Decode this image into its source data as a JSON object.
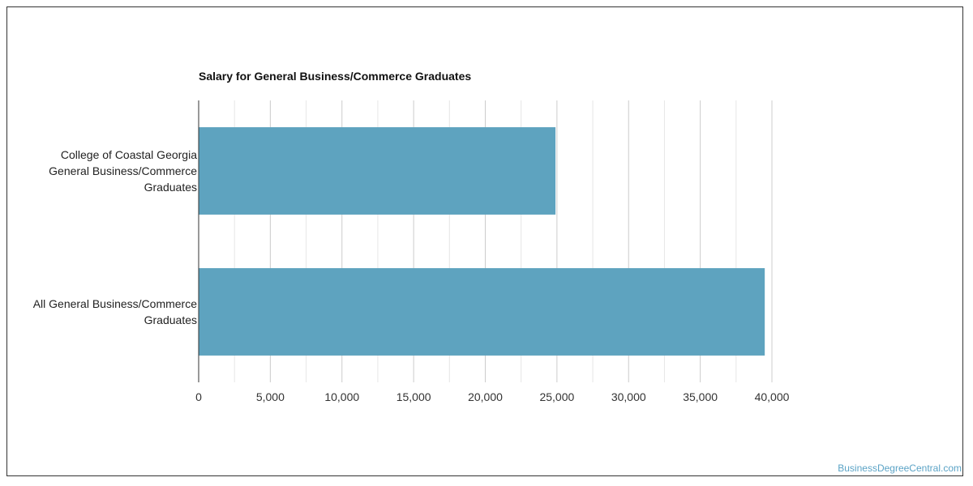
{
  "chart_data": {
    "type": "bar",
    "orientation": "horizontal",
    "title": "Salary for General Business/Commerce Graduates",
    "categories": [
      [
        "College of Coastal Georgia",
        "General Business/Commerce",
        "Graduates"
      ],
      [
        "All General Business/Commerce",
        "Graduates"
      ]
    ],
    "values": [
      24900,
      39500
    ],
    "xlim": [
      0,
      40000
    ],
    "xticks": [
      "0",
      "5,000",
      "10,000",
      "15,000",
      "20,000",
      "25,000",
      "30,000",
      "35,000",
      "40,000"
    ],
    "xlabel": "",
    "ylabel": "",
    "grid": true,
    "bar_color": "#5ea3bf"
  },
  "watermark": "BusinessDegreeCentral.com"
}
